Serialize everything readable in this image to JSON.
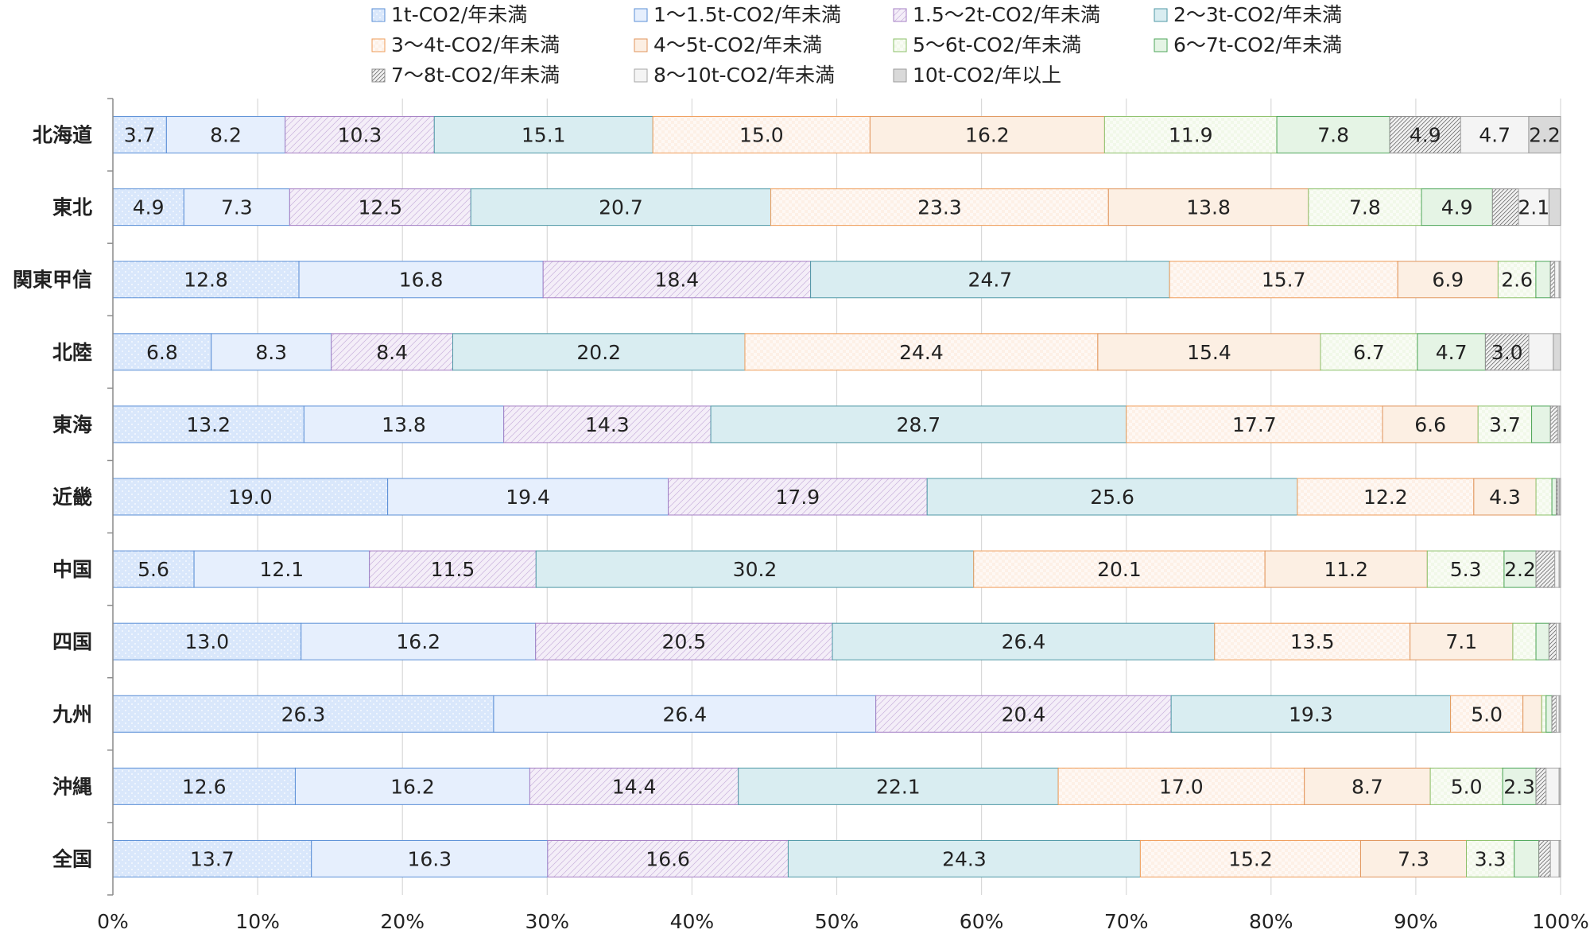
{
  "chart_data": {
    "type": "bar",
    "orientation": "horizontal",
    "stacked": true,
    "percent": true,
    "title": "",
    "xlabel": "",
    "ylabel": "",
    "xlim": [
      0,
      100
    ],
    "x_ticks": [
      "0%",
      "10%",
      "20%",
      "30%",
      "40%",
      "50%",
      "60%",
      "70%",
      "80%",
      "90%",
      "100%"
    ],
    "grid": "vertical",
    "legend_position": "top",
    "categories": [
      "北海道",
      "東北",
      "関東甲信",
      "北陸",
      "東海",
      "近畿",
      "中国",
      "四国",
      "九州",
      "沖縄",
      "全国"
    ],
    "series": [
      {
        "name": "1t-CO2/年未満",
        "color": "#d9e7fb",
        "stroke": "#5b8fd6",
        "pattern": "dots",
        "values": [
          3.7,
          4.9,
          12.8,
          6.8,
          13.2,
          19.0,
          5.6,
          13.0,
          26.3,
          12.6,
          13.7
        ],
        "labels": [
          "3.7",
          "4.9",
          "12.8",
          "6.8",
          "13.2",
          "19.0",
          "5.6",
          "13.0",
          "26.3",
          "12.6",
          "13.7"
        ]
      },
      {
        "name": "1～1.5t-CO2/年未満",
        "color": "#e6effd",
        "stroke": "#5b8fd6",
        "pattern": "solid",
        "values": [
          8.2,
          7.3,
          16.8,
          8.3,
          13.8,
          19.4,
          12.1,
          16.2,
          26.4,
          16.2,
          16.3
        ],
        "labels": [
          "8.2",
          "7.3",
          "16.8",
          "8.3",
          "13.8",
          "19.4",
          "12.1",
          "16.2",
          "26.4",
          "16.2",
          "16.3"
        ]
      },
      {
        "name": "1.5～2t-CO2/年未満",
        "color": "#f4eef8",
        "stroke": "#a47fc4",
        "pattern": "diag",
        "values": [
          10.3,
          12.5,
          18.4,
          8.4,
          14.3,
          17.9,
          11.5,
          20.5,
          20.4,
          14.4,
          16.6
        ],
        "labels": [
          "10.3",
          "12.5",
          "18.4",
          "8.4",
          "14.3",
          "17.9",
          "11.5",
          "20.5",
          "20.4",
          "14.4",
          "16.6"
        ]
      },
      {
        "name": "2～3t-CO2/年未満",
        "color": "#d9edf1",
        "stroke": "#4f98a6",
        "pattern": "solid",
        "values": [
          15.1,
          20.7,
          24.7,
          20.2,
          28.7,
          25.6,
          30.2,
          26.4,
          19.3,
          22.1,
          24.3
        ],
        "labels": [
          "15.1",
          "20.7",
          "24.7",
          "20.2",
          "28.7",
          "25.6",
          "30.2",
          "26.4",
          "19.3",
          "22.1",
          "24.3"
        ]
      },
      {
        "name": "3～4t-CO2/年未満",
        "color": "#fdf0e6",
        "stroke": "#ef9d5a",
        "pattern": "check",
        "values": [
          15.0,
          23.3,
          15.7,
          24.4,
          17.7,
          12.2,
          20.1,
          13.5,
          5.0,
          17.0,
          15.2
        ],
        "labels": [
          "15.0",
          "23.3",
          "15.7",
          "24.4",
          "17.7",
          "12.2",
          "20.1",
          "13.5",
          "5.0",
          "17.0",
          "15.2"
        ]
      },
      {
        "name": "4～5t-CO2/年未満",
        "color": "#fcefe3",
        "stroke": "#e0955c",
        "pattern": "solid",
        "values": [
          16.2,
          13.8,
          6.9,
          15.4,
          6.6,
          4.3,
          11.2,
          7.1,
          1.3,
          8.7,
          7.3
        ],
        "labels": [
          "16.2",
          "13.8",
          "6.9",
          "15.4",
          "6.6",
          "4.3",
          "11.2",
          "7.1",
          "",
          "8.7",
          "7.3"
        ]
      },
      {
        "name": "5～6t-CO2/年未満",
        "color": "#f1f8e9",
        "stroke": "#8cc069",
        "pattern": "check",
        "values": [
          11.9,
          7.8,
          2.6,
          6.7,
          3.7,
          1.1,
          5.3,
          1.6,
          0.3,
          5.0,
          3.3
        ],
        "labels": [
          "11.9",
          "7.8",
          "2.6",
          "6.7",
          "3.7",
          "",
          "5.3",
          "",
          "",
          "5.0",
          "3.3"
        ]
      },
      {
        "name": "6～7t-CO2/年未満",
        "color": "#e5f4e5",
        "stroke": "#4ea65a",
        "pattern": "solid",
        "values": [
          7.8,
          4.9,
          1.0,
          4.7,
          1.3,
          0.3,
          2.2,
          0.9,
          0.4,
          2.3,
          1.7
        ],
        "labels": [
          "7.8",
          "4.9",
          "",
          "4.7",
          "",
          "",
          "2.2",
          "",
          "",
          "2.3",
          ""
        ]
      },
      {
        "name": "7～8t-CO2/年未満",
        "color": "#f2f2f2",
        "stroke": "#8c8c8c",
        "pattern": "diag-dense",
        "values": [
          4.9,
          1.8,
          0.3,
          3.0,
          0.5,
          0.1,
          1.3,
          0.5,
          0.3,
          0.7,
          0.8
        ],
        "labels": [
          "4.9",
          "",
          "",
          "3.0",
          "",
          "",
          "",
          "",
          "",
          "",
          ""
        ]
      },
      {
        "name": "8～10t-CO2/年未満",
        "color": "#f4f4f4",
        "stroke": "#a6a6a6",
        "pattern": "solid",
        "values": [
          4.7,
          2.1,
          0.3,
          1.7,
          0.1,
          0.1,
          0.3,
          0.2,
          0.2,
          0.9,
          0.6
        ],
        "labels": [
          "4.7",
          "2.1",
          "",
          "",
          "",
          "",
          "",
          "",
          "",
          "",
          ""
        ]
      },
      {
        "name": "10t-CO2/年以上",
        "color": "#d9d9d9",
        "stroke": "#9a9a9a",
        "pattern": "solid",
        "values": [
          2.2,
          0.8,
          0.1,
          0.5,
          0.1,
          0.1,
          0.1,
          0.1,
          0.1,
          0.1,
          0.1
        ],
        "labels": [
          "2.2",
          "",
          "",
          "",
          "",
          "",
          "",
          "",
          "",
          "",
          ""
        ]
      }
    ]
  }
}
